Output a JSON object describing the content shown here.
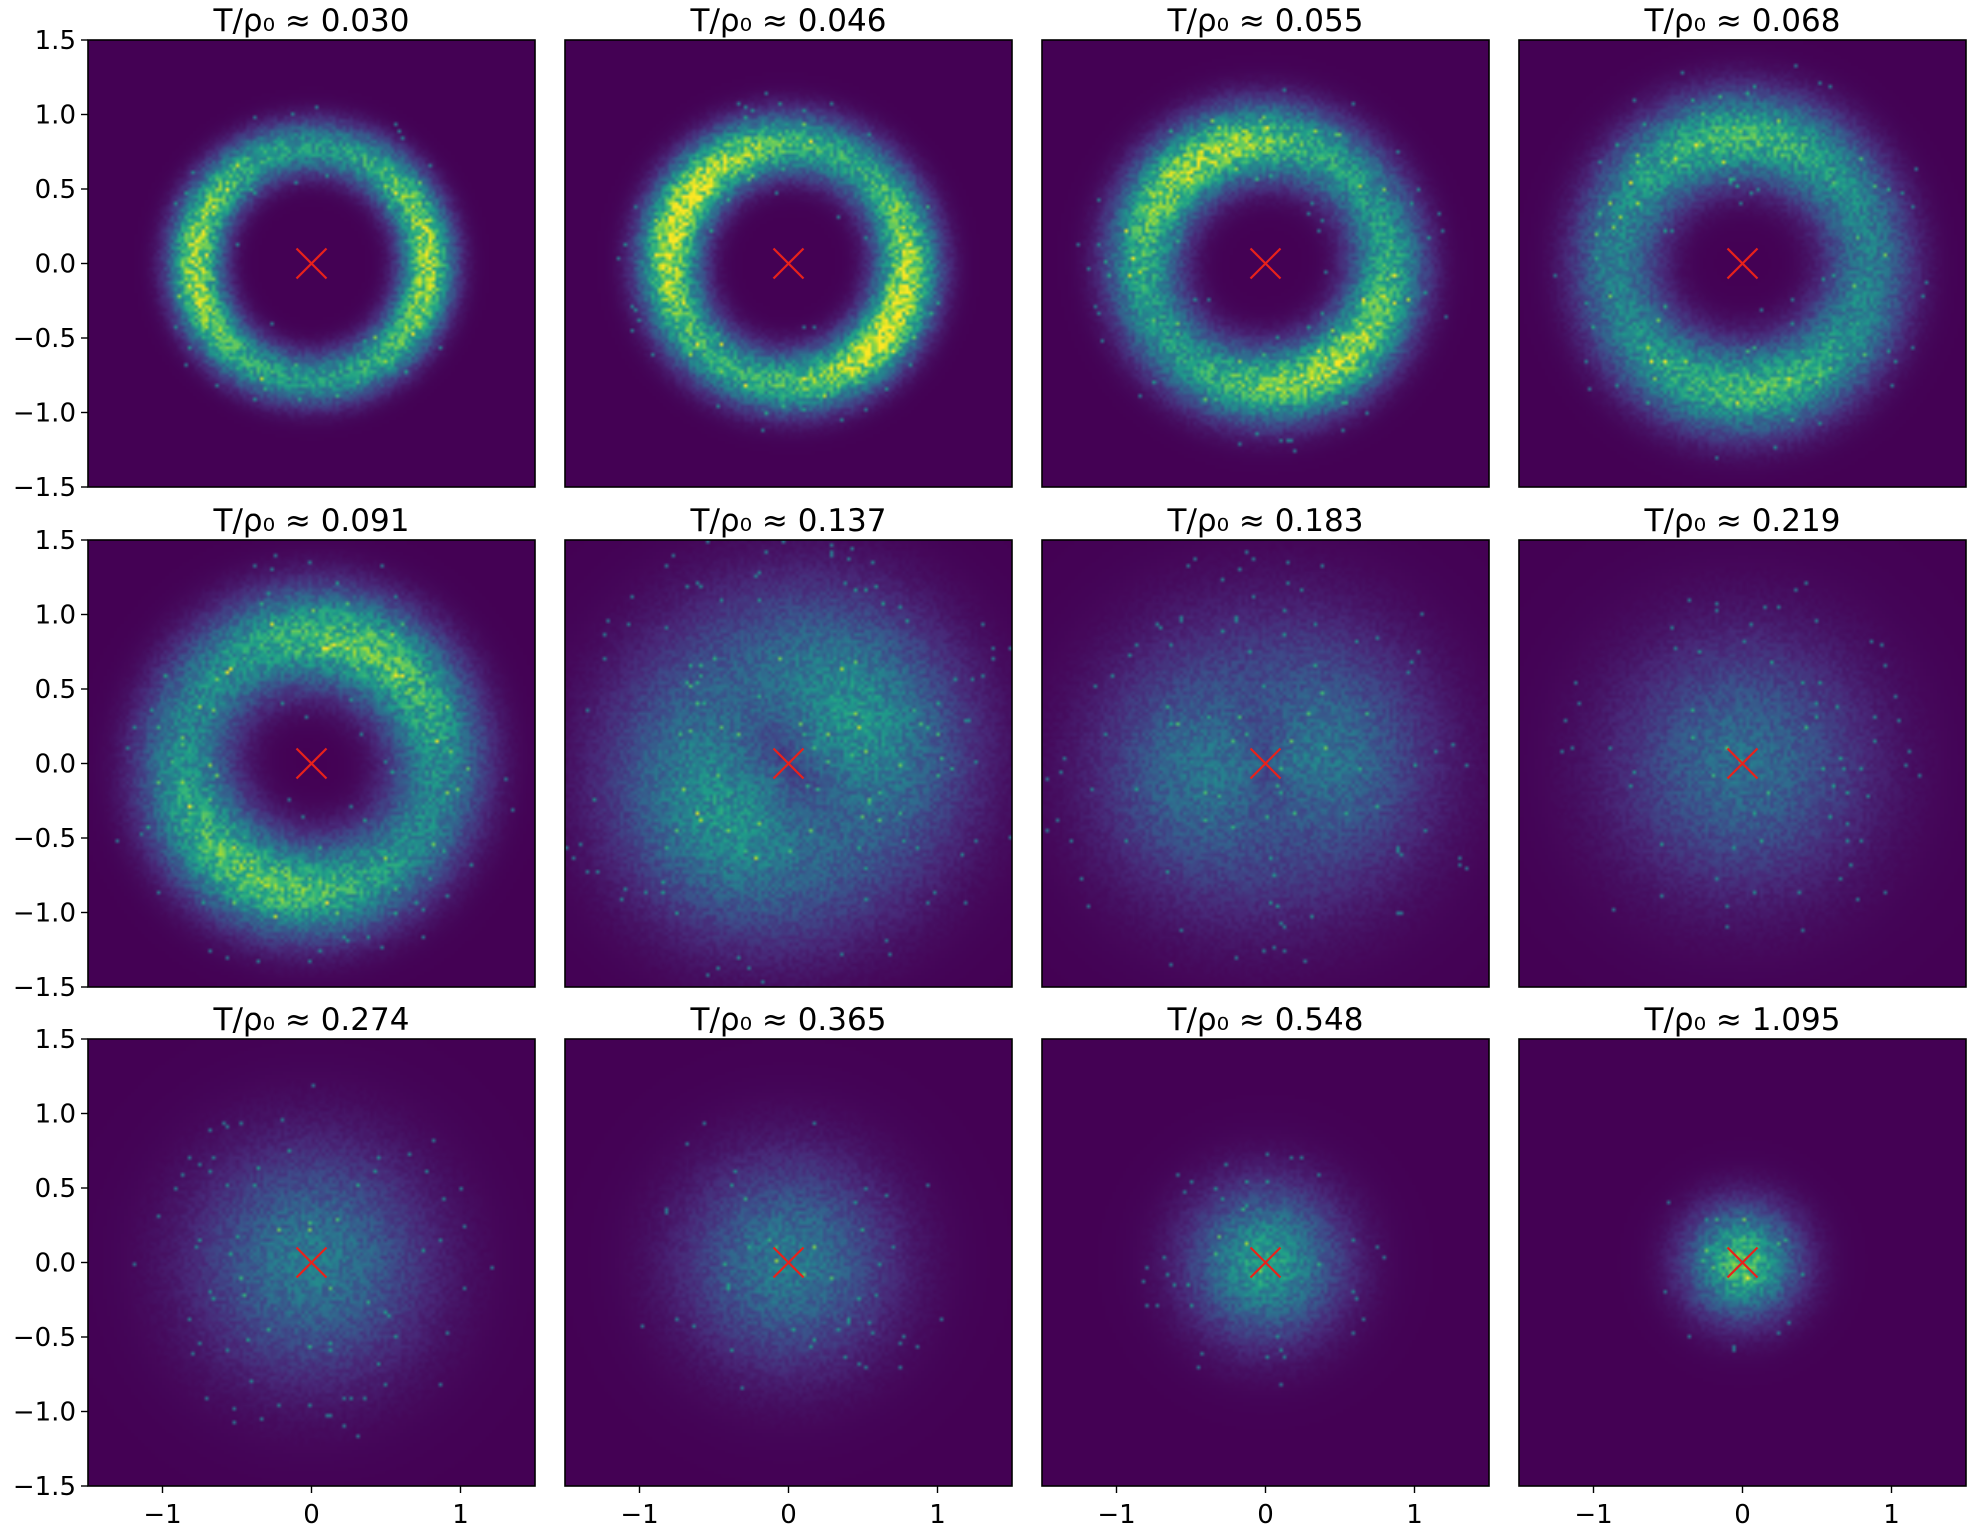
{
  "chart_data": {
    "type": "heatmap",
    "layout": {
      "rows": 3,
      "cols": 4,
      "sharex": true,
      "sharey": true
    },
    "colormap": "viridis",
    "background_color": "#440154",
    "marker": {
      "symbol": "x",
      "color": "#e8221b",
      "x": 0.0,
      "y": 0.0
    },
    "xlim": [
      -1.5,
      1.5
    ],
    "ylim": [
      -1.5,
      1.5
    ],
    "xticks": [
      -1,
      0,
      1
    ],
    "xtick_labels": [
      "−1",
      "0",
      "1"
    ],
    "yticks": [
      1.5,
      1.0,
      0.5,
      0.0,
      -0.5,
      -1.0,
      -1.5
    ],
    "ytick_labels": [
      "1.5",
      "1.0",
      "0.5",
      "0.0",
      "−0.5",
      "−1.0",
      "−1.5"
    ],
    "title_prefix": "T/ρ₀ ≈ ",
    "panels": [
      {
        "value": "0.030",
        "ring_radius": 0.78,
        "ring_width": 0.12,
        "peak_density": 0.75
      },
      {
        "value": "0.046",
        "ring_radius": 0.8,
        "ring_width": 0.14,
        "peak_density": 0.85
      },
      {
        "value": "0.055",
        "ring_radius": 0.82,
        "ring_width": 0.17,
        "peak_density": 0.75
      },
      {
        "value": "0.068",
        "ring_radius": 0.85,
        "ring_width": 0.2,
        "peak_density": 0.6
      },
      {
        "value": "0.091",
        "ring_radius": 0.85,
        "ring_width": 0.22,
        "peak_density": 0.65
      },
      {
        "value": "0.137",
        "ring_radius": 0.55,
        "ring_width": 0.45,
        "peak_density": 0.45
      },
      {
        "value": "0.183",
        "ring_radius": 0.35,
        "ring_width": 0.5,
        "peak_density": 0.35
      },
      {
        "value": "0.219",
        "ring_radius": 0.0,
        "ring_width": 0.55,
        "peak_density": 0.35
      },
      {
        "value": "0.274",
        "ring_radius": 0.0,
        "ring_width": 0.5,
        "peak_density": 0.4
      },
      {
        "value": "0.365",
        "ring_radius": 0.0,
        "ring_width": 0.45,
        "peak_density": 0.4
      },
      {
        "value": "0.548",
        "ring_radius": 0.0,
        "ring_width": 0.33,
        "peak_density": 0.55
      },
      {
        "value": "1.095",
        "ring_radius": 0.0,
        "ring_width": 0.24,
        "peak_density": 0.7
      }
    ]
  }
}
